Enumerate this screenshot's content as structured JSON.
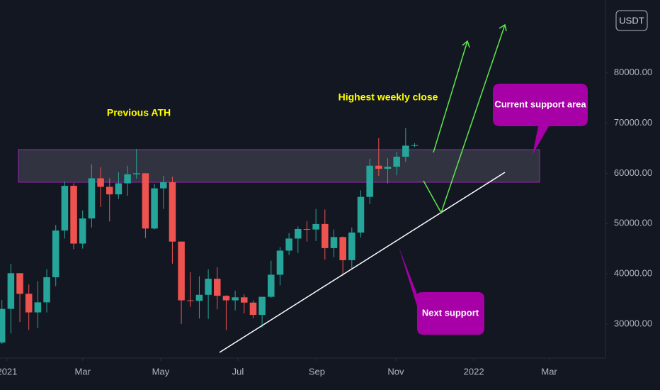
{
  "chart_data": {
    "type": "candlestick",
    "currency": "USDT",
    "annotations": [
      "Previous ATH",
      "Highest weekly close",
      "Current support area",
      "Next support"
    ],
    "colors": {
      "up": "#26a69a",
      "down": "#ef5350"
    },
    "x": [
      0,
      1,
      2,
      3,
      4,
      5,
      6,
      7,
      8,
      9,
      10,
      11,
      12,
      13,
      14,
      15,
      16,
      17,
      18,
      19,
      20,
      21,
      22,
      23,
      24,
      25,
      26,
      27,
      28,
      29,
      30,
      31,
      32,
      33,
      34,
      35,
      36,
      37,
      38,
      39,
      40,
      41,
      42,
      43,
      44,
      45,
      46
    ],
    "open": [
      26300,
      33000,
      40100,
      36000,
      32300,
      34300,
      39300,
      48600,
      57500,
      46000,
      51000,
      59000,
      57300,
      55800,
      58000,
      59800,
      60000,
      49000,
      57000,
      58200,
      46400,
      34700,
      34600,
      35800,
      39000,
      35600,
      34700,
      35300,
      34250,
      31800,
      35400,
      39800,
      44600,
      47000,
      48900,
      48800,
      49900,
      45100,
      47300,
      42700,
      48200,
      55300,
      61500,
      60900,
      61300,
      63300,
      65500
    ],
    "high": [
      34800,
      41950,
      40100,
      37850,
      38500,
      40900,
      49700,
      58350,
      58000,
      52600,
      61800,
      61200,
      59000,
      60200,
      61500,
      64850,
      60000,
      57900,
      59500,
      59300,
      46400,
      40300,
      39500,
      40900,
      41300,
      35700,
      36600,
      35900,
      34700,
      35400,
      42600,
      45300,
      48100,
      49400,
      50500,
      52900,
      52800,
      48800,
      47400,
      49200,
      56600,
      62900,
      67000,
      63000,
      64300,
      69000,
      66000
    ],
    "low": [
      26000,
      28100,
      30400,
      28800,
      29200,
      32300,
      37500,
      47000,
      44900,
      45000,
      49200,
      53300,
      50400,
      54900,
      55500,
      58900,
      47100,
      48800,
      52900,
      42000,
      30000,
      33400,
      31100,
      31000,
      32900,
      28800,
      32700,
      32100,
      31100,
      29300,
      35200,
      37700,
      43700,
      44100,
      46400,
      46500,
      42800,
      43300,
      39600,
      40800,
      47200,
      53900,
      59500,
      58000,
      59600,
      62300,
      65200
    ],
    "close": [
      33000,
      40100,
      36000,
      32300,
      34300,
      39300,
      48600,
      57500,
      46000,
      51000,
      59000,
      57300,
      55800,
      58000,
      59800,
      60000,
      49000,
      57000,
      58200,
      46400,
      34700,
      34600,
      35800,
      39000,
      35600,
      34700,
      35300,
      34250,
      31800,
      35400,
      39800,
      44600,
      47000,
      48900,
      48800,
      49900,
      45100,
      47300,
      42700,
      48200,
      55300,
      61500,
      60900,
      61300,
      63300,
      65500,
      65600
    ],
    "xlim": [
      -0.213,
      67.27
    ],
    "xticks": [
      {
        "value": 0.57,
        "label": "2021"
      },
      {
        "value": 9,
        "label": "Mar"
      },
      {
        "value": 17.7,
        "label": "May"
      },
      {
        "value": 26.3,
        "label": "Jul"
      },
      {
        "value": 35.1,
        "label": "Sep"
      },
      {
        "value": 43.9,
        "label": "Nov"
      },
      {
        "value": 52.6,
        "label": "2022"
      },
      {
        "value": 61,
        "label": "Mar"
      }
    ],
    "ylim": [
      23200,
      94500
    ],
    "yticks": [
      {
        "value": 30000,
        "label": "30000.00"
      },
      {
        "value": 40000,
        "label": "40000.00"
      },
      {
        "value": 50000,
        "label": "50000.00"
      },
      {
        "value": 60000,
        "label": "60000.00"
      },
      {
        "value": 70000,
        "label": "70000.00"
      },
      {
        "value": 80000,
        "label": "80000.00"
      }
    ]
  }
}
